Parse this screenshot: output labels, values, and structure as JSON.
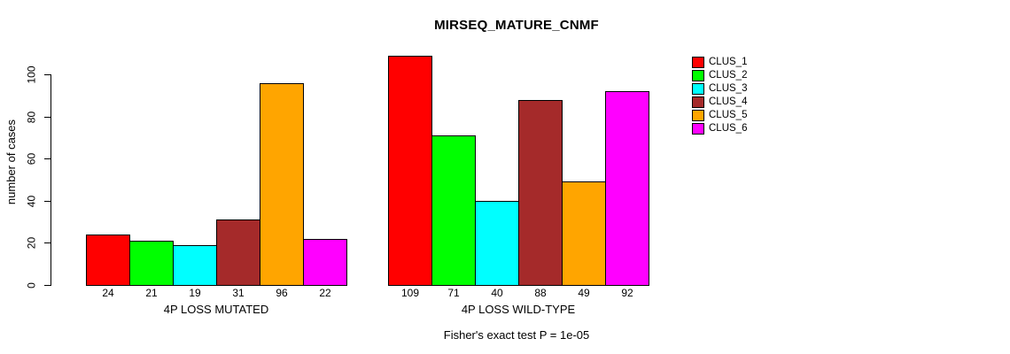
{
  "chart_data": {
    "type": "bar",
    "title": "MIRSEQ_MATURE_CNMF",
    "ylabel": "number of cases",
    "xlabel": "",
    "yticks": [
      0,
      20,
      40,
      60,
      80,
      100
    ],
    "ylim": [
      0,
      109
    ],
    "grid": false,
    "legend_position": "right",
    "categories": [
      "4P LOSS MUTATED",
      "4P LOSS WILD-TYPE"
    ],
    "series": [
      {
        "name": "CLUS_1",
        "color": "#FF0000",
        "values": [
          24,
          109
        ]
      },
      {
        "name": "CLUS_2",
        "color": "#00FF00",
        "values": [
          21,
          71
        ]
      },
      {
        "name": "CLUS_3",
        "color": "#00FFFF",
        "values": [
          19,
          40
        ]
      },
      {
        "name": "CLUS_4",
        "color": "#A52A2A",
        "values": [
          31,
          88
        ]
      },
      {
        "name": "CLUS_5",
        "color": "#FFA500",
        "values": [
          96,
          49
        ]
      },
      {
        "name": "CLUS_6",
        "color": "#FF00FF",
        "values": [
          22,
          92
        ]
      }
    ],
    "bar_value_labels": [
      [
        24,
        21,
        19,
        31,
        96,
        22
      ],
      [
        109,
        71,
        40,
        88,
        49,
        92
      ]
    ],
    "footer": "Fisher's exact test P = 1e-05"
  },
  "colors": {
    "background": "#FFFFFF",
    "axis": "#000000",
    "text": "#000000"
  }
}
